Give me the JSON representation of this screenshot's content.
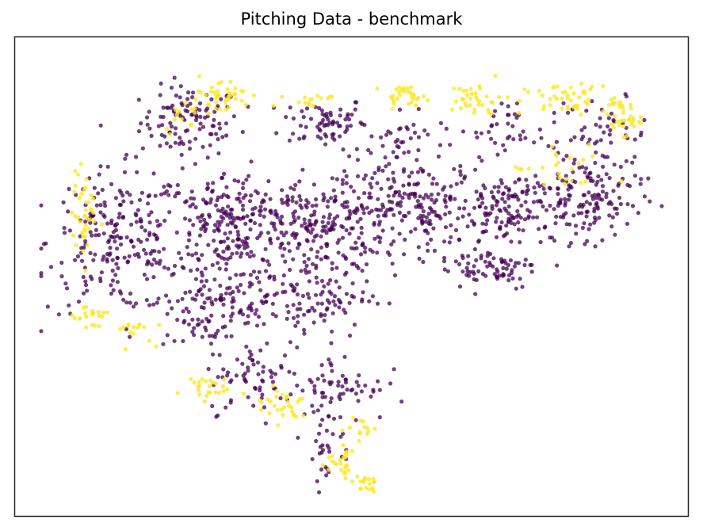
{
  "chart_data": {
    "type": "scatter",
    "title": "Pitching Data - benchmark",
    "xlabel": "",
    "ylabel": "",
    "xlim": [
      0,
      100
    ],
    "ylim": [
      0,
      100
    ],
    "grid": false,
    "ticks": false,
    "legend": "none",
    "series": [
      {
        "color": "#440154",
        "opacity": 0.75,
        "clusters": [
          {
            "cx": 24.0,
            "cy": 85.0,
            "sx": 4.0,
            "sy": 4.0,
            "n": 110
          },
          {
            "cx": 45.5,
            "cy": 85.0,
            "sx": 3.5,
            "sy": 3.0,
            "n": 70
          },
          {
            "cx": 58.0,
            "cy": 81.0,
            "sx": 3.5,
            "sy": 3.0,
            "n": 40
          },
          {
            "cx": 76.0,
            "cy": 84.0,
            "sx": 4.0,
            "sy": 3.0,
            "n": 40
          },
          {
            "cx": 91.0,
            "cy": 82.0,
            "sx": 3.5,
            "sy": 4.0,
            "n": 45
          },
          {
            "cx": 12.0,
            "cy": 58.0,
            "sx": 5.5,
            "sy": 8.0,
            "n": 210
          },
          {
            "cx": 30.0,
            "cy": 62.0,
            "sx": 6.0,
            "sy": 6.0,
            "n": 240
          },
          {
            "cx": 45.0,
            "cy": 62.0,
            "sx": 5.0,
            "sy": 5.0,
            "n": 170
          },
          {
            "cx": 60.0,
            "cy": 66.0,
            "sx": 6.5,
            "sy": 5.0,
            "n": 210
          },
          {
            "cx": 77.0,
            "cy": 65.0,
            "sx": 5.5,
            "sy": 5.0,
            "n": 170
          },
          {
            "cx": 89.0,
            "cy": 68.0,
            "sx": 4.0,
            "sy": 5.0,
            "n": 110
          },
          {
            "cx": 27.0,
            "cy": 44.0,
            "sx": 5.0,
            "sy": 5.0,
            "n": 130
          },
          {
            "cx": 43.0,
            "cy": 46.0,
            "sx": 5.0,
            "sy": 5.0,
            "n": 130
          },
          {
            "cx": 72.0,
            "cy": 52.0,
            "sx": 4.0,
            "sy": 2.5,
            "n": 70
          },
          {
            "cx": 35.0,
            "cy": 27.0,
            "sx": 4.0,
            "sy": 4.0,
            "n": 70
          },
          {
            "cx": 48.5,
            "cy": 25.0,
            "sx": 3.5,
            "sy": 4.0,
            "n": 60
          },
          {
            "cx": 46.0,
            "cy": 12.0,
            "sx": 2.0,
            "sy": 4.0,
            "n": 30
          }
        ]
      },
      {
        "color": "#fde725",
        "opacity": 0.8,
        "clusters": [
          {
            "cx": 29.0,
            "cy": 91.0,
            "sx": 2.5,
            "sy": 2.0,
            "n": 40
          },
          {
            "cx": 23.0,
            "cy": 87.0,
            "sx": 1.5,
            "sy": 2.0,
            "n": 15
          },
          {
            "cx": 43.0,
            "cy": 90.0,
            "sx": 2.0,
            "sy": 1.0,
            "n": 15
          },
          {
            "cx": 58.5,
            "cy": 91.0,
            "sx": 1.8,
            "sy": 1.0,
            "n": 30
          },
          {
            "cx": 70.0,
            "cy": 90.0,
            "sx": 2.0,
            "sy": 2.0,
            "n": 35
          },
          {
            "cx": 85.0,
            "cy": 90.0,
            "sx": 4.0,
            "sy": 1.8,
            "n": 50
          },
          {
            "cx": 93.5,
            "cy": 86.0,
            "sx": 1.5,
            "sy": 2.0,
            "n": 30
          },
          {
            "cx": 7.0,
            "cy": 64.0,
            "sx": 1.0,
            "sy": 5.0,
            "n": 40
          },
          {
            "cx": 8.0,
            "cy": 41.0,
            "sx": 1.5,
            "sy": 2.0,
            "n": 20
          },
          {
            "cx": 14.0,
            "cy": 38.0,
            "sx": 2.0,
            "sy": 1.5,
            "n": 15
          },
          {
            "cx": 26.0,
            "cy": 25.0,
            "sx": 2.0,
            "sy": 1.5,
            "n": 25
          },
          {
            "cx": 39.0,
            "cy": 21.0,
            "sx": 2.5,
            "sy": 2.0,
            "n": 30
          },
          {
            "cx": 52.0,
            "cy": 16.0,
            "sx": 1.0,
            "sy": 1.5,
            "n": 12
          },
          {
            "cx": 48.0,
            "cy": 8.0,
            "sx": 1.5,
            "sy": 2.0,
            "n": 25
          },
          {
            "cx": 52.0,
            "cy": 3.0,
            "sx": 1.0,
            "sy": 1.0,
            "n": 20
          },
          {
            "cx": 84.0,
            "cy": 74.0,
            "sx": 4.0,
            "sy": 3.0,
            "n": 25
          }
        ]
      }
    ]
  }
}
